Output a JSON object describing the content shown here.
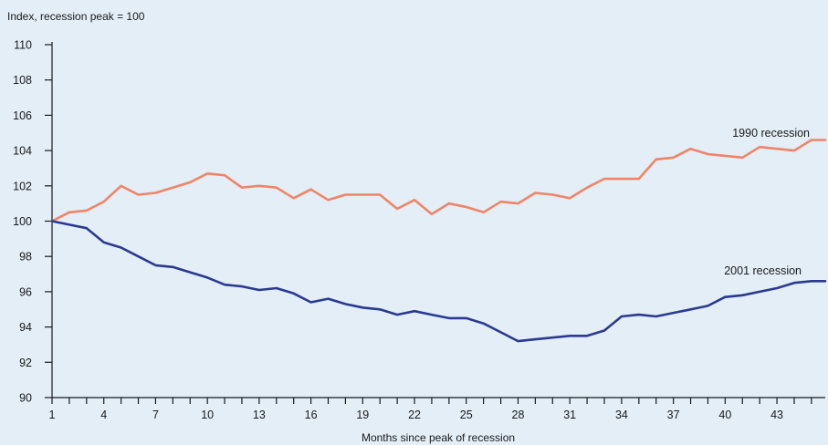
{
  "chart_data": {
    "type": "line",
    "ylabel": "Index, recession peak = 100",
    "xlabel": "Months since peak of recession",
    "ylim": [
      90,
      110
    ],
    "yticks": [
      90,
      92,
      94,
      96,
      98,
      100,
      102,
      104,
      106,
      108,
      110
    ],
    "xlim": [
      1,
      45.8
    ],
    "xticks_labeled": [
      1,
      4,
      7,
      10,
      13,
      16,
      19,
      22,
      25,
      28,
      31,
      34,
      37,
      40,
      43
    ],
    "xticks_minor": [
      1,
      2,
      3,
      4,
      5,
      6,
      7,
      8,
      9,
      10,
      11,
      12,
      13,
      14,
      15,
      16,
      17,
      18,
      19,
      20,
      21,
      22,
      23,
      24,
      25,
      26,
      27,
      28,
      29,
      30,
      31,
      32,
      33,
      34,
      35,
      36,
      37,
      38,
      39,
      40,
      41,
      42,
      43,
      44,
      45
    ],
    "grid": false,
    "series": [
      {
        "name": "1990 recession",
        "color": "#f08467",
        "x": [
          1,
          2,
          3,
          4,
          5,
          6,
          7,
          8,
          9,
          10,
          11,
          12,
          13,
          14,
          15,
          16,
          17,
          18,
          19,
          20,
          21,
          22,
          23,
          24,
          25,
          26,
          27,
          28,
          29,
          30,
          31,
          32,
          33,
          34,
          35,
          36,
          37,
          38,
          39,
          40,
          41,
          42,
          43,
          44,
          45,
          45.8
        ],
        "values": [
          100.0,
          100.5,
          100.6,
          101.1,
          102.0,
          101.5,
          101.6,
          101.9,
          102.2,
          102.7,
          102.6,
          101.9,
          102.0,
          101.9,
          101.3,
          101.8,
          101.2,
          101.5,
          101.5,
          101.5,
          100.7,
          101.2,
          100.4,
          101.0,
          100.8,
          100.5,
          101.1,
          101.0,
          101.6,
          101.5,
          101.3,
          101.9,
          102.4,
          102.4,
          102.4,
          103.5,
          103.6,
          104.1,
          103.8,
          103.7,
          103.6,
          104.2,
          104.1,
          104.0,
          104.6,
          104.6
        ]
      },
      {
        "name": "2001 recession",
        "color": "#2b3990",
        "x": [
          1,
          2,
          3,
          4,
          5,
          6,
          7,
          8,
          9,
          10,
          11,
          12,
          13,
          14,
          15,
          16,
          17,
          18,
          19,
          20,
          21,
          22,
          23,
          24,
          25,
          26,
          27,
          28,
          29,
          30,
          31,
          32,
          33,
          34,
          35,
          36,
          37,
          38,
          39,
          40,
          41,
          42,
          43,
          44,
          45,
          45.8
        ],
        "values": [
          100.0,
          99.8,
          99.6,
          98.8,
          98.5,
          98.0,
          97.5,
          97.4,
          97.1,
          96.8,
          96.4,
          96.3,
          96.1,
          96.2,
          95.9,
          95.4,
          95.6,
          95.3,
          95.1,
          95.0,
          94.7,
          94.9,
          94.7,
          94.5,
          94.5,
          94.2,
          93.7,
          93.2,
          93.3,
          93.4,
          93.5,
          93.5,
          93.8,
          94.6,
          94.7,
          94.6,
          94.8,
          95.0,
          95.2,
          95.7,
          95.8,
          96.0,
          96.2,
          96.5,
          96.6,
          96.6
        ]
      }
    ]
  }
}
